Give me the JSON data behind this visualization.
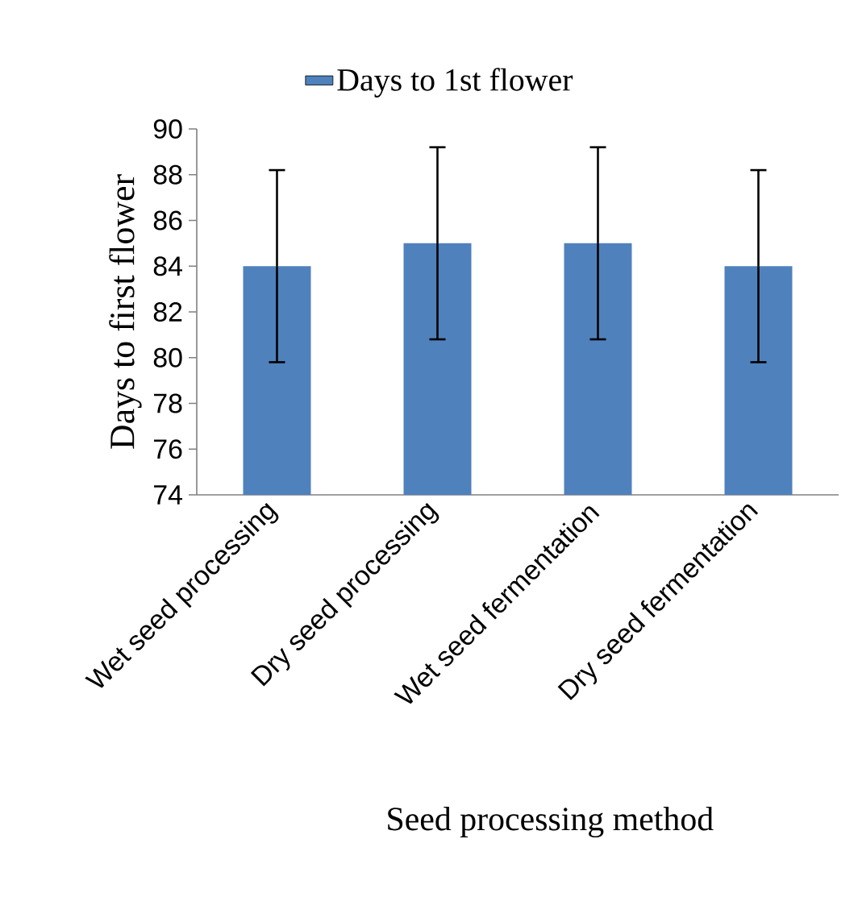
{
  "chart_data": {
    "type": "bar",
    "xlabel": "Seed processing method",
    "ylabel": "Days to first flower",
    "categories": [
      "Wet seed processing",
      "Dry seed processing",
      "Wet seed fermentation",
      "Dry seed fermentation"
    ],
    "series": [
      {
        "name": "Days to 1st flower",
        "color": "#4f81bd",
        "values": [
          84,
          85,
          85,
          84
        ],
        "errors": [
          4.2,
          4.2,
          4.2,
          4.2
        ]
      }
    ],
    "ylim": [
      74,
      90
    ],
    "yticks": [
      74,
      76,
      78,
      80,
      82,
      84,
      86,
      88,
      90
    ],
    "legend": "top"
  }
}
